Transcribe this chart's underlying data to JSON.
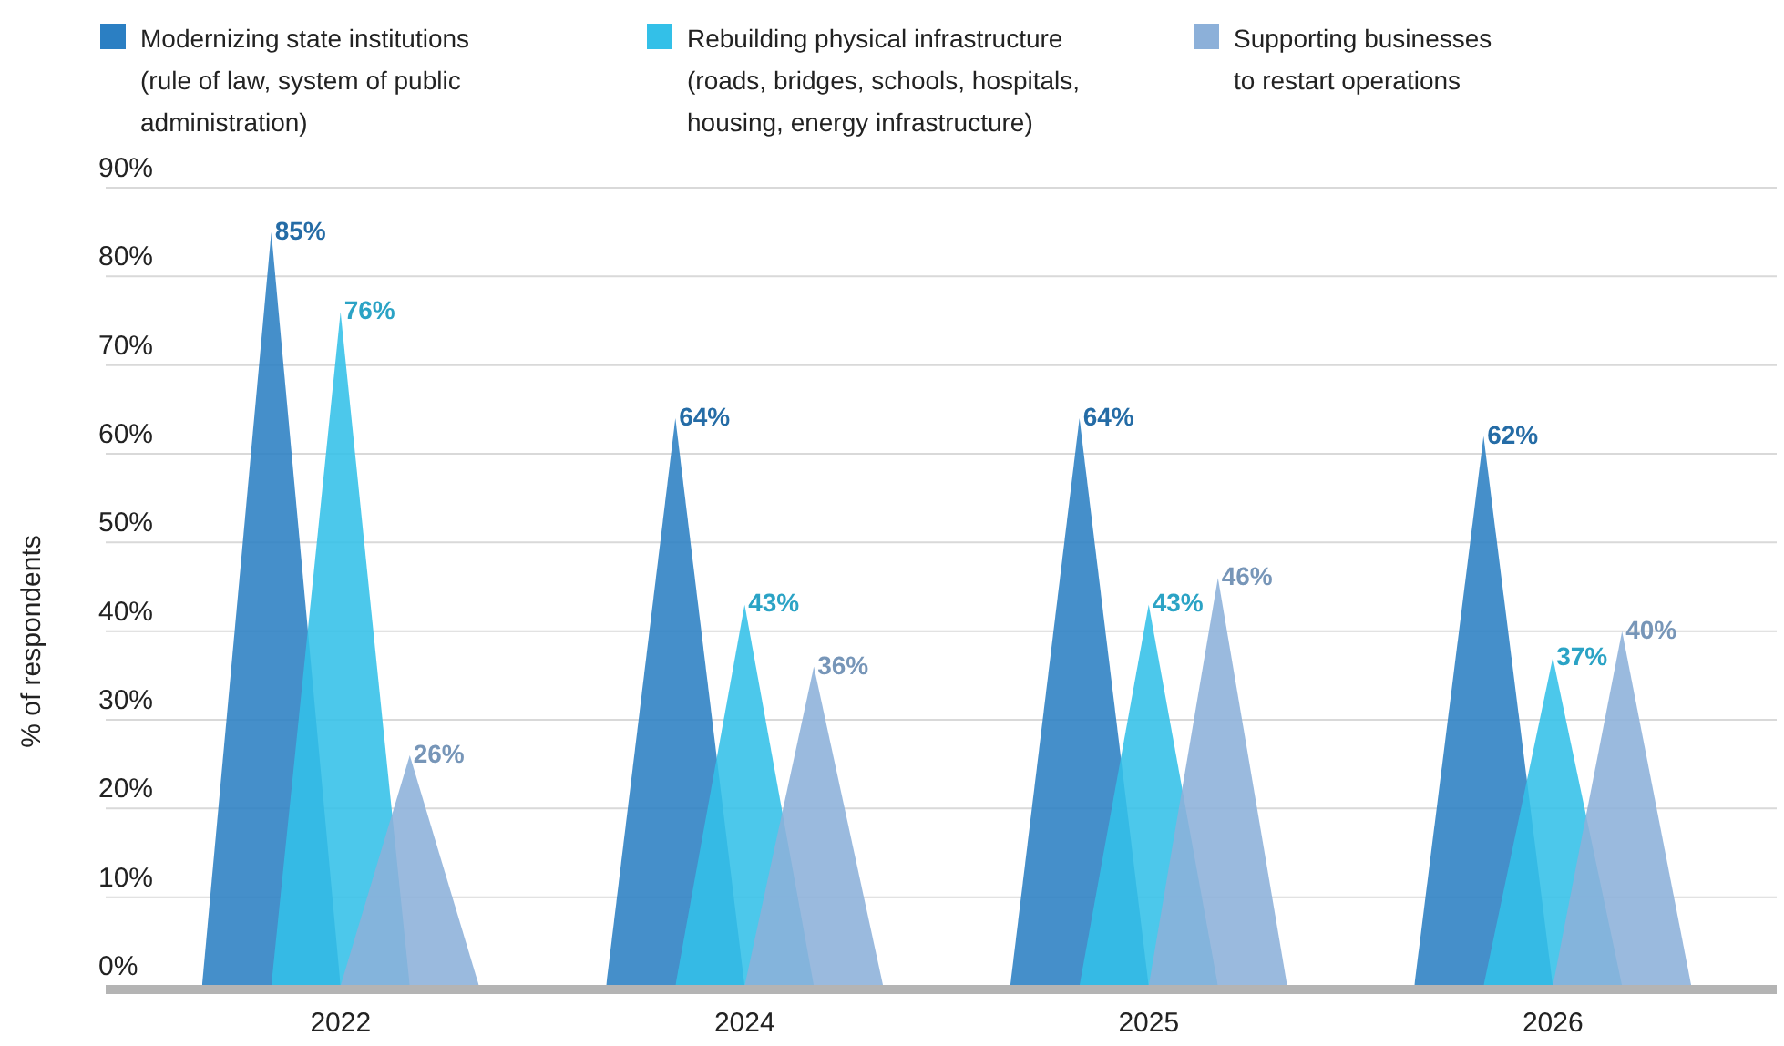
{
  "chart_data": {
    "type": "bar",
    "ylabel": "% of respondents",
    "categories": [
      "2022",
      "2024",
      "2025",
      "2026"
    ],
    "series": [
      {
        "name": "Modernizing state institutions\n(rule of law, system of public\nadministration)",
        "color": "#2b7fc3",
        "values": [
          85,
          64,
          64,
          62
        ],
        "value_labels": [
          "85%",
          "64%",
          "64%",
          "62%"
        ]
      },
      {
        "name": "Rebuilding physical infrastructure\n(roads, bridges, schools, hospitals,\nhousing, energy infrastructure)",
        "color": "#33c0e8",
        "values": [
          76,
          43,
          43,
          37
        ],
        "value_labels": [
          "76%",
          "43%",
          "43%",
          "37%"
        ]
      },
      {
        "name": "Supporting businesses\nto restart operations",
        "color": "#8cb0d9",
        "values": [
          26,
          36,
          46,
          40
        ],
        "value_labels": [
          "26%",
          "36%",
          "46%",
          "40%"
        ]
      }
    ],
    "ylim": [
      0,
      90
    ],
    "yticks": [
      {
        "value": 0,
        "label": "0%"
      },
      {
        "value": 10,
        "label": "10%"
      },
      {
        "value": 20,
        "label": "20%"
      },
      {
        "value": 30,
        "label": "30%"
      },
      {
        "value": 40,
        "label": "40%"
      },
      {
        "value": 50,
        "label": "50%"
      },
      {
        "value": 60,
        "label": "60%"
      },
      {
        "value": 70,
        "label": "70%"
      },
      {
        "value": 80,
        "label": "80%"
      },
      {
        "value": 90,
        "label": "90%"
      }
    ],
    "grid": "y",
    "legend": "top"
  }
}
